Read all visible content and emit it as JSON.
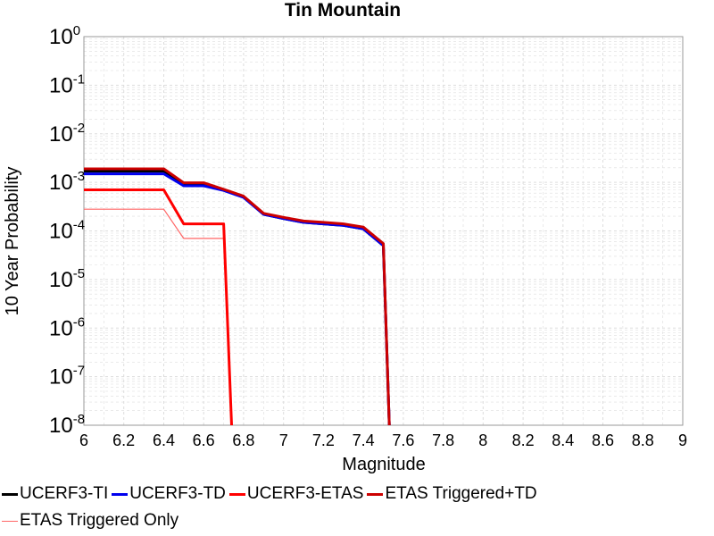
{
  "chart_data": {
    "type": "line",
    "title": "Tin Mountain",
    "xlabel": "Magnitude",
    "ylabel": "10 Year Probability",
    "xlim": [
      6,
      9
    ],
    "ylim": [
      1e-08,
      1
    ],
    "yscale": "log",
    "grid": true,
    "legend_position": "bottom",
    "x_ticks": [
      "6",
      "6.2",
      "6.4",
      "6.6",
      "6.8",
      "7",
      "7.2",
      "7.4",
      "7.6",
      "7.8",
      "8",
      "8.2",
      "8.4",
      "8.6",
      "8.8",
      "9"
    ],
    "y_tick_exponents": [
      "0",
      "-1",
      "-2",
      "-3",
      "-4",
      "-5",
      "-6",
      "-7",
      "-8"
    ],
    "series": [
      {
        "name": "UCERF3-TI",
        "color": "#000000",
        "width": 3,
        "x": [
          6.0,
          6.4,
          6.5,
          6.6,
          6.7,
          6.8,
          6.9,
          7.0,
          7.1,
          7.2,
          7.3,
          7.4,
          7.5,
          7.53
        ],
        "y": [
          0.0017,
          0.0017,
          0.0009,
          0.0009,
          0.0007,
          0.0005,
          0.00022,
          0.00018,
          0.00015,
          0.00014,
          0.00013,
          0.00011,
          5e-05,
          1e-08
        ]
      },
      {
        "name": "UCERF3-TD",
        "color": "#0000ee",
        "width": 3,
        "x": [
          6.0,
          6.4,
          6.5,
          6.6,
          6.7,
          6.8,
          6.9,
          7.0,
          7.1,
          7.2,
          7.3,
          7.4,
          7.5,
          7.53
        ],
        "y": [
          0.0015,
          0.0015,
          0.00085,
          0.00085,
          0.00068,
          0.00049,
          0.00022,
          0.00018,
          0.00015,
          0.00014,
          0.00013,
          0.00011,
          5e-05,
          1e-08
        ]
      },
      {
        "name": "UCERF3-ETAS",
        "color": "#ff0000",
        "width": 3,
        "x": [
          6.0,
          6.4,
          6.5,
          6.7,
          6.74
        ],
        "y": [
          0.0007,
          0.0007,
          0.00014,
          0.00014,
          1e-08
        ]
      },
      {
        "name": "ETAS Triggered+TD",
        "color": "#cc0000",
        "width": 3,
        "x": [
          6.0,
          6.4,
          6.5,
          6.6,
          6.7,
          6.8,
          6.9,
          7.0,
          7.1,
          7.2,
          7.3,
          7.4,
          7.5,
          7.53
        ],
        "y": [
          0.0019,
          0.0019,
          0.00098,
          0.00098,
          0.00072,
          0.00052,
          0.00023,
          0.00019,
          0.00016,
          0.00015,
          0.00014,
          0.00012,
          5.5e-05,
          1e-08
        ]
      },
      {
        "name": "ETAS Triggered Only",
        "color": "#ff6666",
        "width": 1.2,
        "x": [
          6.0,
          6.4,
          6.5,
          6.7
        ],
        "y": [
          0.00028,
          0.00028,
          7e-05,
          7e-05
        ]
      }
    ]
  }
}
